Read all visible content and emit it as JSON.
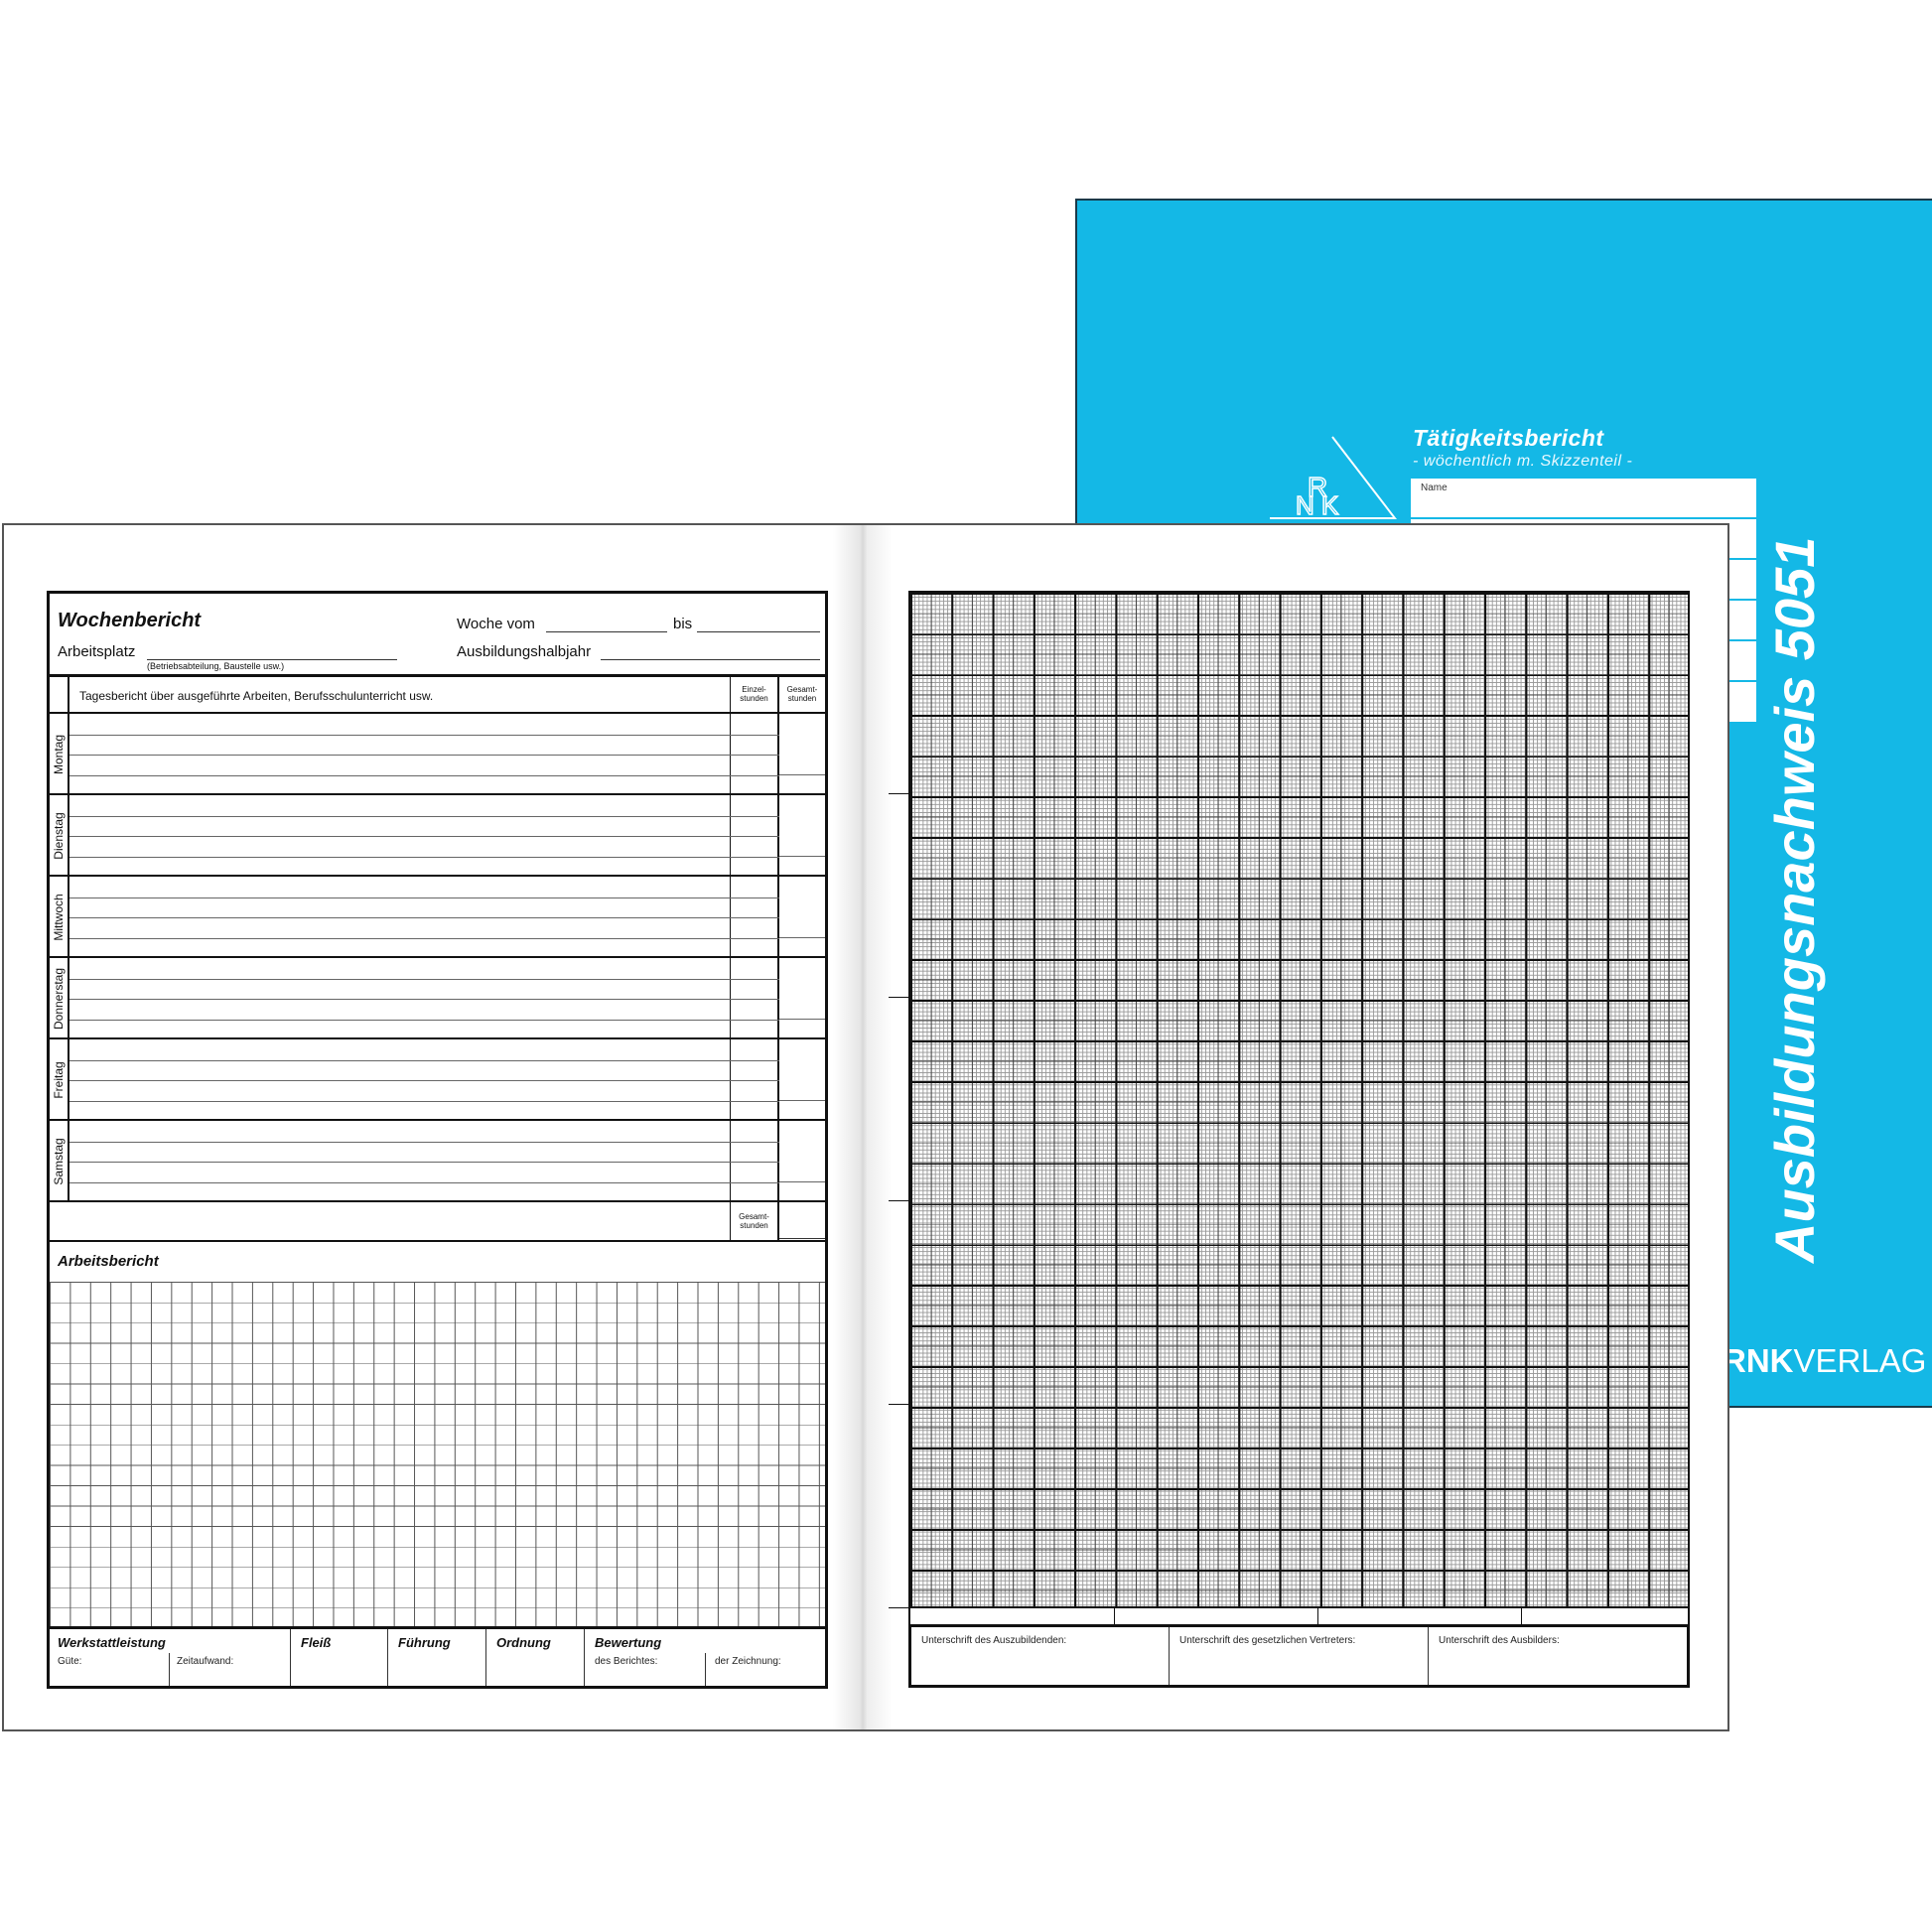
{
  "cover": {
    "title": "Tätigkeitsbericht",
    "subtitle": "- wöchentlich m. Skizzenteil -",
    "name_label": "Name",
    "product": "Ausbildungsnachweis 5051",
    "brand_bold": "RNK",
    "brand_light": "VERLAG",
    "color": "#14b8e6"
  },
  "left_page": {
    "title": "Wochenbericht",
    "week_from": "Woche vom",
    "week_to": "bis",
    "workplace": "Arbeitsplatz",
    "workplace_hint": "(Betriebsabteilung, Baustelle usw.)",
    "half_year": "Ausbildungshalbjahr",
    "table_header": "Tagesbericht über ausgeführte Arbeiten, Berufsschulunterricht usw.",
    "col_single": "Einzel-\nstunden",
    "col_total": "Gesamt-\nstunden",
    "days": [
      "Montag",
      "Dienstag",
      "Mittwoch",
      "Donnerstag",
      "Freitag",
      "Samstag"
    ],
    "total_label": "Gesamt-\nstunden",
    "work_report": "Arbeitsbericht",
    "footer": {
      "workshop": "Werkstattleistung",
      "quality": "Güte:",
      "time": "Zeitaufwand:",
      "diligence": "Fleiß",
      "conduct": "Führung",
      "order": "Ordnung",
      "rating": "Bewertung",
      "of_report": "des Berichtes:",
      "of_drawing": "der Zeichnung:"
    }
  },
  "right_page": {
    "sig_trainee": "Unterschrift des Auszubildenden:",
    "sig_guardian": "Unterschrift des gesetzlichen Vertreters:",
    "sig_trainer": "Unterschrift des Ausbilders:"
  }
}
